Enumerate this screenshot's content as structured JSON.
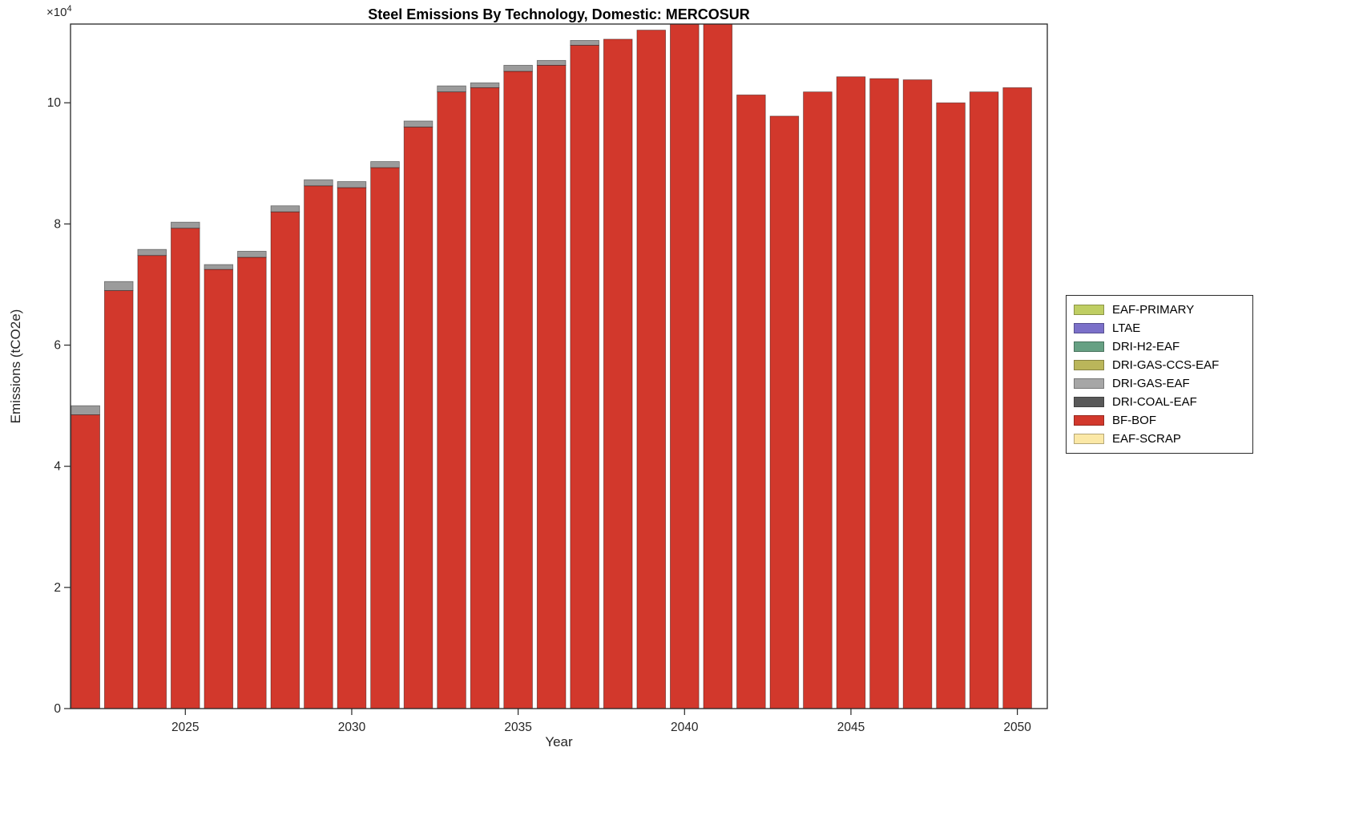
{
  "chart_data": {
    "type": "bar",
    "stacked": true,
    "title": "Steel Emissions By Technology, Domestic: MERCOSUR",
    "xlabel": "Year",
    "ylabel": "Emissions (tCO2e)",
    "y_axis_multiplier": {
      "base": "×10",
      "exp": "4"
    },
    "xlim": [
      2021.55,
      2050.9
    ],
    "ylim": [
      0,
      113000
    ],
    "x_ticks": [
      2025,
      2030,
      2035,
      2040,
      2045,
      2050
    ],
    "y_ticks": [
      0,
      20000,
      40000,
      60000,
      80000,
      100000
    ],
    "y_tick_labels": [
      "0",
      "2",
      "4",
      "6",
      "8",
      "10"
    ],
    "grid": false,
    "legend_position": "right-outside",
    "years": [
      2022,
      2023,
      2024,
      2025,
      2026,
      2027,
      2028,
      2029,
      2030,
      2031,
      2032,
      2033,
      2034,
      2035,
      2036,
      2037,
      2038,
      2039,
      2040,
      2041,
      2042,
      2043,
      2044,
      2045,
      2046,
      2047,
      2048,
      2049,
      2050
    ],
    "series": [
      {
        "name": "BF-BOF",
        "color": "#D2382C",
        "values": [
          48500,
          69000,
          74800,
          79300,
          72500,
          74500,
          82000,
          86300,
          86000,
          89300,
          96000,
          101800,
          102500,
          105200,
          106200,
          109500,
          110500,
          112000,
          114500,
          114200,
          101300,
          97800,
          101800,
          104300,
          104000,
          103800,
          100000,
          101800,
          102500
        ]
      },
      {
        "name": "DRI-GAS-EAF",
        "color": "#9B9B9B",
        "values": [
          1500,
          1500,
          1000,
          1000,
          800,
          1000,
          1000,
          1000,
          1000,
          1000,
          1000,
          1000,
          800,
          1000,
          800,
          800,
          0,
          0,
          0,
          0,
          0,
          0,
          0,
          0,
          0,
          0,
          0,
          0,
          0
        ]
      }
    ],
    "legend": [
      {
        "label": "EAF-PRIMARY",
        "color": "#BFCE63"
      },
      {
        "label": "LTAE",
        "color": "#7B70C9"
      },
      {
        "label": "DRI-H2-EAF",
        "color": "#66A083"
      },
      {
        "label": "DRI-GAS-CCS-EAF",
        "color": "#BAB65A"
      },
      {
        "label": "DRI-GAS-EAF",
        "color": "#A6A6A6"
      },
      {
        "label": "DRI-COAL-EAF",
        "color": "#595959"
      },
      {
        "label": "BF-BOF",
        "color": "#D2382C"
      },
      {
        "label": "EAF-SCRAP",
        "color": "#FBE8A6"
      }
    ]
  }
}
